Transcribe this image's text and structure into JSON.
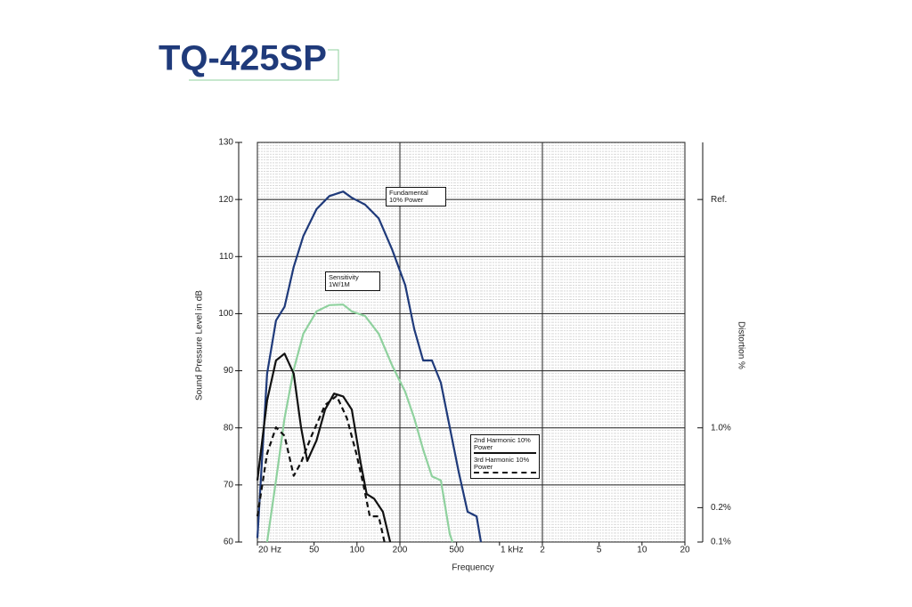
{
  "chart_data": {
    "type": "line",
    "title": "TQ-425SP",
    "xlabel": "Frequency",
    "ylabel": "Sound Pressure Level in dB",
    "y2label": "Distortion %",
    "xscale": "log",
    "y2scale": "log",
    "xlim": [
      20,
      20000
    ],
    "xticks": [
      {
        "value": 20,
        "label": "20 Hz"
      },
      50,
      100,
      200,
      500,
      {
        "value": 1000,
        "label": "1 kHz"
      },
      {
        "value": 2000,
        "label": "2"
      },
      {
        "value": 5000,
        "label": "5"
      },
      {
        "value": 10000,
        "label": "10"
      },
      {
        "value": 20000,
        "label": "20"
      }
    ],
    "ylim": [
      60,
      130
    ],
    "yticks": [
      60,
      70,
      80,
      90,
      100,
      110,
      120,
      130
    ],
    "y2lim": [
      0.1,
      316.2
    ],
    "y2ticks": [
      {
        "value": 100,
        "label": "Ref."
      },
      {
        "value": 1,
        "label": "1.0%"
      },
      {
        "value": 0.2,
        "label": "0.2%"
      },
      {
        "value": 0.1,
        "label": "0.1%"
      }
    ],
    "grid": true,
    "series": [
      {
        "name": "Fundamental 10% Power",
        "color": "#1f3a7a",
        "style": "solid",
        "x": [
          20,
          23.4,
          27,
          31,
          36,
          42,
          52,
          64,
          80,
          92,
          114,
          142,
          176,
          218,
          252,
          291,
          336,
          388,
          448,
          517,
          597,
          690,
          741
        ],
        "values": [
          60.7,
          89.5,
          98.8,
          101.2,
          108.2,
          113.6,
          118.3,
          120.6,
          121.4,
          120.3,
          119.1,
          116.7,
          111.3,
          105,
          97.3,
          91.8,
          91.8,
          87.9,
          80.1,
          72.3,
          65.3,
          64.5,
          60
        ]
      },
      {
        "name": "Sensitivity 1W/1M",
        "color": "#8fd19e",
        "style": "solid",
        "x": [
          23.4,
          27,
          31,
          36,
          42,
          52,
          64,
          80,
          92,
          114,
          142,
          176,
          218,
          252,
          291,
          336,
          388,
          448,
          468
        ],
        "values": [
          60,
          70.8,
          81.7,
          90.2,
          96.5,
          100.4,
          101.5,
          101.6,
          100.4,
          99.6,
          96.5,
          91,
          86.3,
          81.7,
          76.2,
          71.5,
          70.8,
          61.4,
          60
        ]
      },
      {
        "name": "2nd Harmonic 10% Power",
        "color": "#111111",
        "style": "solid",
        "x": [
          20,
          23.4,
          27,
          31,
          36,
          40.5,
          44.8,
          52,
          59.7,
          69,
          80,
          92,
          106,
          117,
          132,
          152,
          171
        ],
        "values": [
          70.8,
          84.8,
          91.8,
          93,
          89.5,
          80.1,
          74.2,
          77.8,
          83.2,
          86,
          85.5,
          83.2,
          73.9,
          68.4,
          67.6,
          65.3,
          60
        ]
      },
      {
        "name": "3rd Harmonic 10% Power",
        "color": "#111111",
        "style": "dashed",
        "x": [
          20,
          23.4,
          27,
          31,
          36,
          40.5,
          48,
          59.7,
          72,
          85,
          99,
          111,
          123,
          142,
          156
        ],
        "values": [
          64.5,
          75.5,
          80.1,
          78.6,
          71.6,
          73.9,
          78.6,
          84,
          85.6,
          81.7,
          75.5,
          70,
          64.5,
          64.5,
          60
        ]
      }
    ]
  }
}
